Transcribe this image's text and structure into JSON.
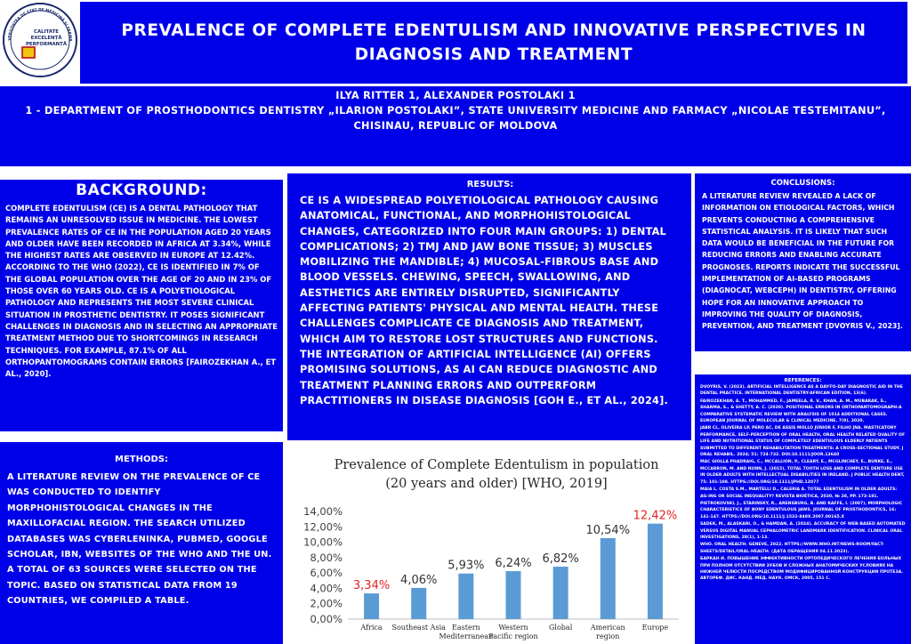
{
  "title": "PREVALENCE OF COMPLETE EDENTULISM AND INNOVATIVE PERSPECTIVES IN DIAGNOSIS AND TREATMENT",
  "logo": {
    "top_text": "UNIVERSITATEA DE STAT DE MEDICINĂ ȘI FARMACIE",
    "motto": [
      "CALITATE",
      "EXCELENȚĂ",
      "PERFORMANȚĂ"
    ]
  },
  "authors": {
    "names": "ILYA RITTER 1, ALEXANDER POSTOLAKI 1",
    "affiliation": "1 - DEPARTMENT OF PROSTHODONTICS DENTISTRY „ILARION POSTOLAKI”, STATE UNIVERSITY MEDICINE AND FARMACY „NICOLAE TESTEMITANU”, CHISINAU, REPUBLIC OF MOLDOVA"
  },
  "background": {
    "heading": "BACKGROUND:",
    "text": "COMPLETE EDENTULISM (CE) IS A DENTAL PATHOLOGY THAT REMAINS AN UNRESOLVED ISSUE IN MEDICINE. THE LOWEST PREVALENCE RATES OF CE IN THE POPULATION AGED 20 YEARS AND OLDER HAVE BEEN RECORDED IN AFRICA AT 3.34%, WHILE THE HIGHEST RATES ARE OBSERVED IN EUROPE AT 12.42%. ACCORDING TO THE WHO (2022), CE IS IDENTIFIED IN 7% OF THE GLOBAL POPULATION OVER THE AGE OF 20 AND IN 23% OF THOSE OVER 60 YEARS OLD. CE IS A POLYETIOLOGICAL PATHOLOGY AND REPRESENTS THE MOST SEVERE CLINICAL SITUATION IN PROSTHETIC DENTISTRY. IT POSES SIGNIFICANT CHALLENGES IN DIAGNOSIS AND IN SELECTING AN APPROPRIATE TREATMENT METHOD DUE TO SHORTCOMINGS IN RESEARCH TECHNIQUES. FOR EXAMPLE, 87.1% OF ALL ORTHOPANTOMOGRAMS CONTAIN ERRORS [FAIROZEKHAN A., ET AL., 2020]."
  },
  "methods": {
    "heading": "METHODS:",
    "text": "A LITERATURE REVIEW ON THE PREVALENCE OF CE WAS CONDUCTED TO IDENTIFY MORPHOHISTOLOGICAL CHANGES IN THE MAXILLOFACIAL REGION. THE SEARCH UTILIZED DATABASES WAS CYBERLENINKA, PUBMED, GOOGLE SCHOLAR, IBN, WEBSITES OF THE WHO AND THE UN. A TOTAL OF 63 SOURCES WERE SELECTED ON THE TOPIC. BASED ON STATISTICAL DATA FROM 19 COUNTRIES, WE COMPILED A TABLE."
  },
  "results": {
    "heading": "RESULTS:",
    "text": "CE IS A WIDESPREAD POLYETIOLOGICAL PATHOLOGY CAUSING ANATOMICAL, FUNCTIONAL, AND MORPHOHISTOLOGICAL CHANGES, CATEGORIZED INTO FOUR MAIN GROUPS: 1) DENTAL COMPLICATIONS; 2) TMJ AND JAW BONE TISSUE; 3) MUSCLES MOBILIZING THE MANDIBLE; 4) MUCOSAL-FIBROUS BASE AND BLOOD VESSELS. CHEWING, SPEECH, SWALLOWING, AND AESTHETICS ARE ENTIRELY DISRUPTED, SIGNIFICANTLY AFFECTING PATIENTS' PHYSICAL AND MENTAL HEALTH. THESE CHALLENGES COMPLICATE CE DIAGNOSIS AND TREATMENT, WHICH AIM TO RESTORE LOST STRUCTURES AND FUNCTIONS. THE INTEGRATION OF ARTIFICIAL INTELLIGENCE (AI) OFFERS PROMISING SOLUTIONS, AS AI CAN REDUCE DIAGNOSTIC AND TREATMENT PLANNING ERRORS AND OUTPERFORM PRACTITIONERS IN DISEASE DIAGNOSIS [GOH E., ET AL., 2024]."
  },
  "conclusions": {
    "heading": "CONCLUSIONS:",
    "text": "A LITERATURE REVIEW REVEALED A LACK OF INFORMATION ON ETIOLOGICAL FACTORS, WHICH PREVENTS CONDUCTING A COMPREHENSIVE STATISTICAL ANALYSIS. IT IS LIKELY THAT SUCH DATA WOULD BE BENEFICIAL IN THE FUTURE FOR REDUCING ERRORS AND ENABLING ACCURATE PROGNOSES. REPORTS INDICATE THE SUCCESSFUL IMPLEMENTATION OF AI-BASED PROGRAMS (DIAGNOCAT, WEBCEPH) IN DENTISTRY, OFFERING HOPE FOR AN INNOVATIVE APPROACH TO IMPROVING THE QUALITY OF DIAGNOSIS, PREVENTION, AND TREATMENT [DVOYRIS V., 2023]."
  },
  "references": {
    "heading": "REFERENCES:",
    "items": [
      "DVOYRIS, V. (2023). ARTIFICIAL INTELLIGENCE AS A DAY-TO-DAY DIAGNOSTIC AID IN THE DENTAL PRACTICE. INTERNATIONAL DENTISTRY-AFRICAN EDITION, 13(6).",
      "FAIROZEKHAN, A. T., MOHAMMED, F., JAMEELA, R. V., KHAN, A. M., MUBARAK, S., SHARMA, S., & SHETTY, A. C. (2020). POSITIONAL ERRORS IN ORTHOPANTOMOGRAPH-A COMPARATIVE SYSTEMATIC REVIEW WITH ANALYSIS OF 1014 ADDITIONAL CASES. EUROPEAN JOURNAL OF MOLECULAR & CLINICAL MEDICINE, 7(9), 2020.",
      "JABR CL, OLIVEIRA LP, PERO AC, DE ASSIS MOLLO JÚNIOR F, FILHO JNA. MASTICATORY PERFORMANCE, SELF-PERCEPTION OF ORAL HEALTH, ORAL HEALTH RELATED QUALITY OF LIFE AND NUTRITIONAL STATUS OF COMPLETELY EDENTULOUS ELDERLY PATIENTS SUBMITTED TO DIFFERENT REHABILITATION TREATMENTS: A CROSS-SECTIONAL STUDY. J ORAL REHABIL. 2024; 51: 724-732. DOI:10.1111/JOOR.13640",
      "MAC GIOLLA PHADRAIG, C., MCCALLION, P., CLEARY, E., MCGLINCHEY, E., BURKE, E., MCCARRON, M. AND NUNN, J. (2015), TOTAL TOOTH LOSS AND COMPLETE DENTURE USE IN OLDER ADULTS WITH INTELLECTUAL DISABILITIES IN IRELAND. J PUBLIC HEALTH DENT, 75: 101-108. HTTPS://DOI.ORG/10.1111/JPHD.12077",
      "MAIA L. COSTA S.M., MARTELLI D., CALERIA A. TOTAL EDENTULISM IN OLDER ADULTS: AG-ING OR SOCIAL INEQUALITY? REVISTA BIOÉTICA, 2020, № 28, PP. 173-181.",
      "PIETROKOVSKI, J., STARINSKY, R., ARENSBURG, B. AND KAFFE, I. (2007), MORPHOLOGIC CHARACTERISTICS OF BONY EDENTULOUS JAWS. JOURNAL OF PROSTHODONTICS, 16: 141-147. HTTPS://DOI.ORG/10.1111/J.1532-849X.2007.00165.X",
      "SADEK, M., ALASKARI, O., & HAMDAN, A. (2024). ACCURACY OF WEB-BASED AUTOMATED VERSUS DIGITAL MANUAL CEPHALOMETRIC LANDMARK IDENTIFICATION. CLINICAL ORAL INVESTIGATIONS, 28(1), 1-13.",
      "WHO. ORAL HEALTH. GENEVE, 2022. HTTPS://WWW.WHO.INT/NEWS-ROOM/FACT-SHEETS/DETAIL/ORAL-HEALTH. (ДАТА ОБРАЩЕНИЯ 04.11.2023).",
      "БАРКАН И. ПОВЫШЕНИЕ ЭФФЕКТИВНОСТИ ОРТОПЕДИЧЕСКОГО ЛЕЧЕНИЯ БОЛЬНЫХ ПРИ ПОЛНОМ ОТСУТСТВИИ ЗУБОВ И СЛОЖНЫХ АНАТОМИЧЕСКИХ УСЛОВИЯХ НА НИЖНЕЙ ЧЕЛЮСТИ ПОСРЕДСТВОМ МОДИФИЦИРОВАННОЙ КОНСТРУКЦИИ ПРОТЕЗА. АВТОРЕФ. ДИС. КАНД. МЕД. НАУК. ОМСК, 2005, 151 С."
    ]
  },
  "colors": {
    "panel_blue": "#0000e8",
    "bar_blue": "#5b9bd5",
    "highlight_red": "#e32424",
    "axis_text": "#3f3f3f"
  },
  "chart_data": {
    "type": "bar",
    "title": [
      "Prevalence of Complete Edentulism in population",
      "(20 years and older) [WHO, 2019]"
    ],
    "categories": [
      [
        "Africa"
      ],
      [
        "Southeast Asia"
      ],
      [
        "Eastern",
        "Mediterranean"
      ],
      [
        "Western",
        "Pacific region"
      ],
      [
        "Global"
      ],
      [
        "American",
        "region"
      ],
      [
        "Europe"
      ]
    ],
    "values": [
      3.34,
      4.06,
      5.93,
      6.24,
      6.82,
      10.54,
      12.42
    ],
    "value_labels": [
      "3,34%",
      "4,06%",
      "5,93%",
      "6,24%",
      "6,82%",
      "10,54%",
      "12,42%"
    ],
    "highlighted": [
      true,
      false,
      false,
      false,
      false,
      false,
      true
    ],
    "ylim": [
      0,
      14
    ],
    "yticks": [
      "0,00%",
      "2,00%",
      "4,00%",
      "6,00%",
      "8,00%",
      "10,00%",
      "12,00%",
      "14,00%"
    ],
    "grid": false,
    "legend": "none",
    "xlabel": "",
    "ylabel": ""
  }
}
